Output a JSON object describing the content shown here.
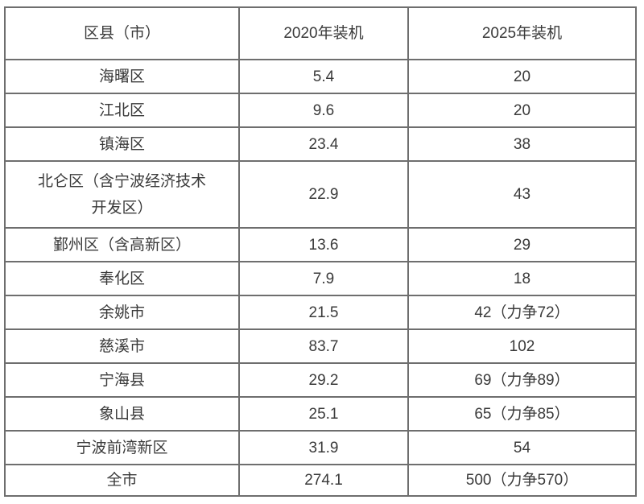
{
  "chart_data": {
    "type": "table",
    "columns": [
      "区县（市）",
      "2020年装机",
      "2025年装机"
    ],
    "rows": [
      [
        "海曙区",
        "5.4",
        "20"
      ],
      [
        "江北区",
        "9.6",
        "20"
      ],
      [
        "镇海区",
        "23.4",
        "38"
      ],
      [
        "北仑区（含宁波经济技术\n开发区）",
        "22.9",
        "43"
      ],
      [
        "鄞州区（含高新区）",
        "13.6",
        "29"
      ],
      [
        "奉化区",
        "7.9",
        "18"
      ],
      [
        "余姚市",
        "21.5",
        "42（力争72）"
      ],
      [
        "慈溪市",
        "83.7",
        "102"
      ],
      [
        "宁海县",
        "29.2",
        "69（力争89）"
      ],
      [
        "象山县",
        "25.1",
        "65（力争85）"
      ],
      [
        "宁波前湾新区",
        "31.9",
        "54"
      ],
      [
        "全市",
        "274.1",
        "500（力争570）"
      ]
    ],
    "layout": {
      "grid": "on",
      "header_row": true,
      "text_align": "center"
    },
    "colors": {
      "border": "#6e6e6e",
      "text": "#3a3a3a",
      "background": "#ffffff"
    }
  }
}
